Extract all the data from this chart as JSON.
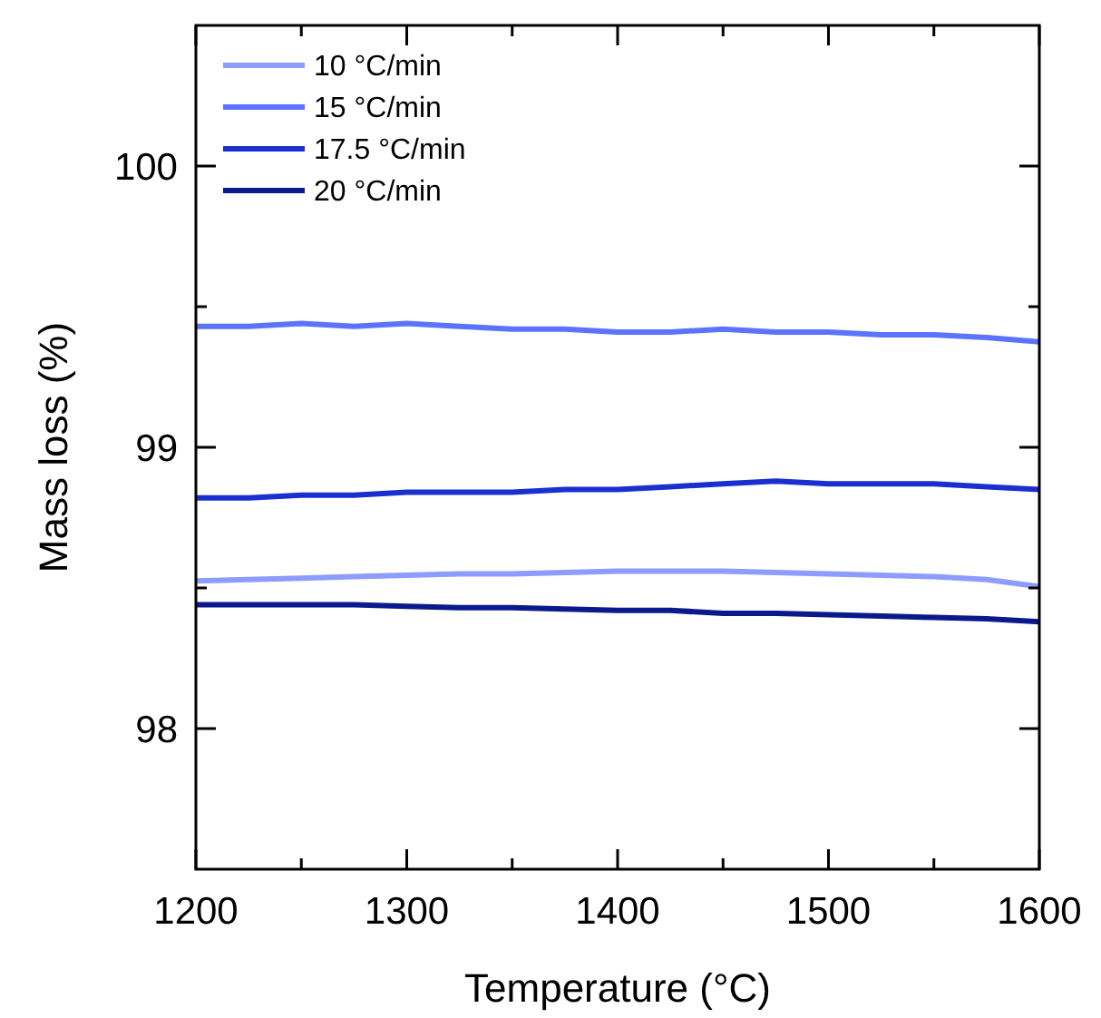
{
  "chart_data": {
    "type": "line",
    "xlabel": "Temperature (°C)",
    "ylabel": "Mass loss (%)",
    "x": [
      1200,
      1225,
      1250,
      1275,
      1300,
      1325,
      1350,
      1375,
      1400,
      1425,
      1450,
      1475,
      1500,
      1525,
      1550,
      1575,
      1600
    ],
    "series": [
      {
        "name": "10 °C/min",
        "color": "#8c9cff",
        "values": [
          98.525,
          98.53,
          98.535,
          98.54,
          98.545,
          98.55,
          98.55,
          98.555,
          98.56,
          98.56,
          98.56,
          98.555,
          98.55,
          98.545,
          98.54,
          98.53,
          98.505
        ]
      },
      {
        "name": "15 °C/min",
        "color": "#5b73ff",
        "values": [
          99.43,
          99.43,
          99.44,
          99.43,
          99.44,
          99.43,
          99.42,
          99.42,
          99.41,
          99.41,
          99.42,
          99.41,
          99.41,
          99.4,
          99.4,
          99.39,
          99.375
        ]
      },
      {
        "name": "17.5 °C/min",
        "color": "#1a2fd0",
        "values": [
          98.82,
          98.82,
          98.83,
          98.83,
          98.84,
          98.84,
          98.84,
          98.85,
          98.85,
          98.86,
          98.87,
          98.88,
          98.87,
          98.87,
          98.87,
          98.86,
          98.85
        ]
      },
      {
        "name": "20 °C/min",
        "color": "#0a1a8c",
        "values": [
          98.44,
          98.44,
          98.44,
          98.44,
          98.435,
          98.43,
          98.43,
          98.425,
          98.42,
          98.42,
          98.41,
          98.41,
          98.405,
          98.4,
          98.395,
          98.39,
          98.38
        ]
      }
    ],
    "xlim": [
      1200,
      1600
    ],
    "xticks": [
      1200,
      {
        "value": 1250,
        "label": null
      },
      1300,
      {
        "value": 1350,
        "label": null
      },
      1400,
      {
        "value": 1450,
        "label": null
      },
      1500,
      {
        "value": 1550,
        "label": null
      },
      1600
    ],
    "ylim": [
      97.5,
      100.5
    ],
    "yticks": [
      98,
      {
        "value": 98.5,
        "label": null
      },
      99,
      {
        "value": 99.5,
        "label": null
      },
      100
    ],
    "grid": false,
    "legend": "top left",
    "marker": "none",
    "line_style": "solid"
  }
}
